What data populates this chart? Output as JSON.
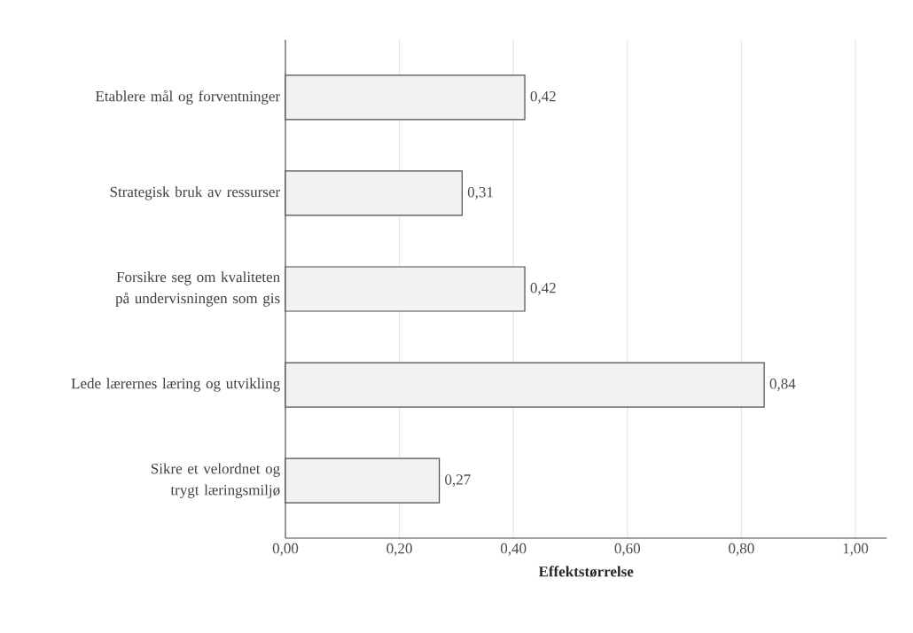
{
  "chart_data": {
    "type": "bar",
    "orientation": "horizontal",
    "xlabel": "**Effektstørrelse**",
    "categories": [
      "Etablere mål og forventninger",
      "Strategisk bruk av ressurser",
      "Forsikre seg om kvaliteten på undervisningen som gis",
      "Lede lærernes læring og utvikling",
      "Sikre et velordnet og trygt læringsmiljø"
    ],
    "values": [
      0.42,
      0.31,
      0.42,
      0.84,
      0.27
    ],
    "value_labels": [
      "0,42",
      "0,31",
      "0,42",
      "0,84",
      "0,27"
    ],
    "color": "#f2f2f2",
    "xlim": [
      0,
      1.055
    ],
    "xticks": [
      {
        "value": 0,
        "label": "0,00"
      },
      {
        "value": 0.2,
        "label": "0,20"
      },
      {
        "value": 0.4,
        "label": "0,40"
      },
      {
        "value": 0.6,
        "label": "0,60"
      },
      {
        "value": 0.8,
        "label": "0,80"
      },
      {
        "value": 1.0,
        "label": "1,00"
      }
    ],
    "grid": "x"
  }
}
